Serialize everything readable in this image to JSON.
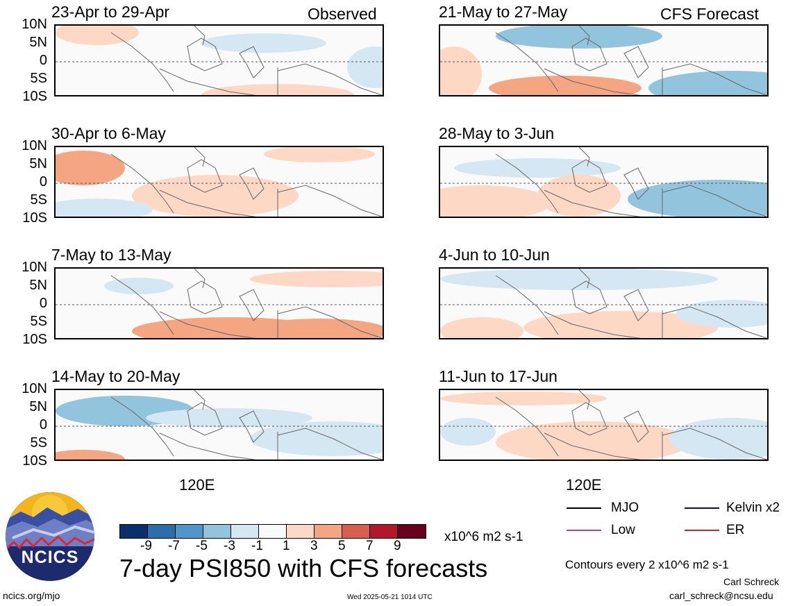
{
  "header": {
    "left_label": "Observed",
    "right_label": "CFS Forecast"
  },
  "panels_left": [
    {
      "title": "23-Apr to 29-Apr"
    },
    {
      "title": "30-Apr to 6-May"
    },
    {
      "title": "7-May to 13-May"
    },
    {
      "title": "14-May to 20-May"
    }
  ],
  "panels_right": [
    {
      "title": "21-May to 27-May"
    },
    {
      "title": "28-May to 3-Jun"
    },
    {
      "title": "4-Jun to 10-Jun"
    },
    {
      "title": "11-Jun to 17-Jun"
    }
  ],
  "axes": {
    "lat_labels": [
      "10N",
      "5N",
      "0",
      "5S",
      "10S"
    ],
    "lon_label": "120E"
  },
  "colorbar": {
    "tick_labels": [
      "-9",
      "-7",
      "-5",
      "-3",
      "-1",
      "1",
      "3",
      "5",
      "7",
      "9"
    ],
    "units": "x10^6 m2 s-1",
    "colors": [
      "#08306b",
      "#2b6ea8",
      "#4f97c9",
      "#93c4de",
      "#d5e7f2",
      "#fafafa",
      "#fdd8c5",
      "#f4a582",
      "#d6604d",
      "#b2182b",
      "#67001f"
    ]
  },
  "legend": {
    "items": [
      {
        "label": "MJO",
        "color": "#000000"
      },
      {
        "label": "Kelvin x2",
        "color": "#0000cc"
      },
      {
        "label": "Low",
        "color": "#a040e0"
      },
      {
        "label": "ER",
        "color": "#e02020"
      }
    ],
    "contour_note": "Contours every 2 x10^6 m2 s-1"
  },
  "main_title": "7-day PSI850 with CFS forecasts",
  "logo_text": "NCICS",
  "footer": {
    "url": "ncics.org/mjo",
    "timestamp": "Wed 2025-05-21 1014 UTC",
    "author": "Carl Schreck",
    "email": "carl_schreck@ncsu.edu"
  }
}
